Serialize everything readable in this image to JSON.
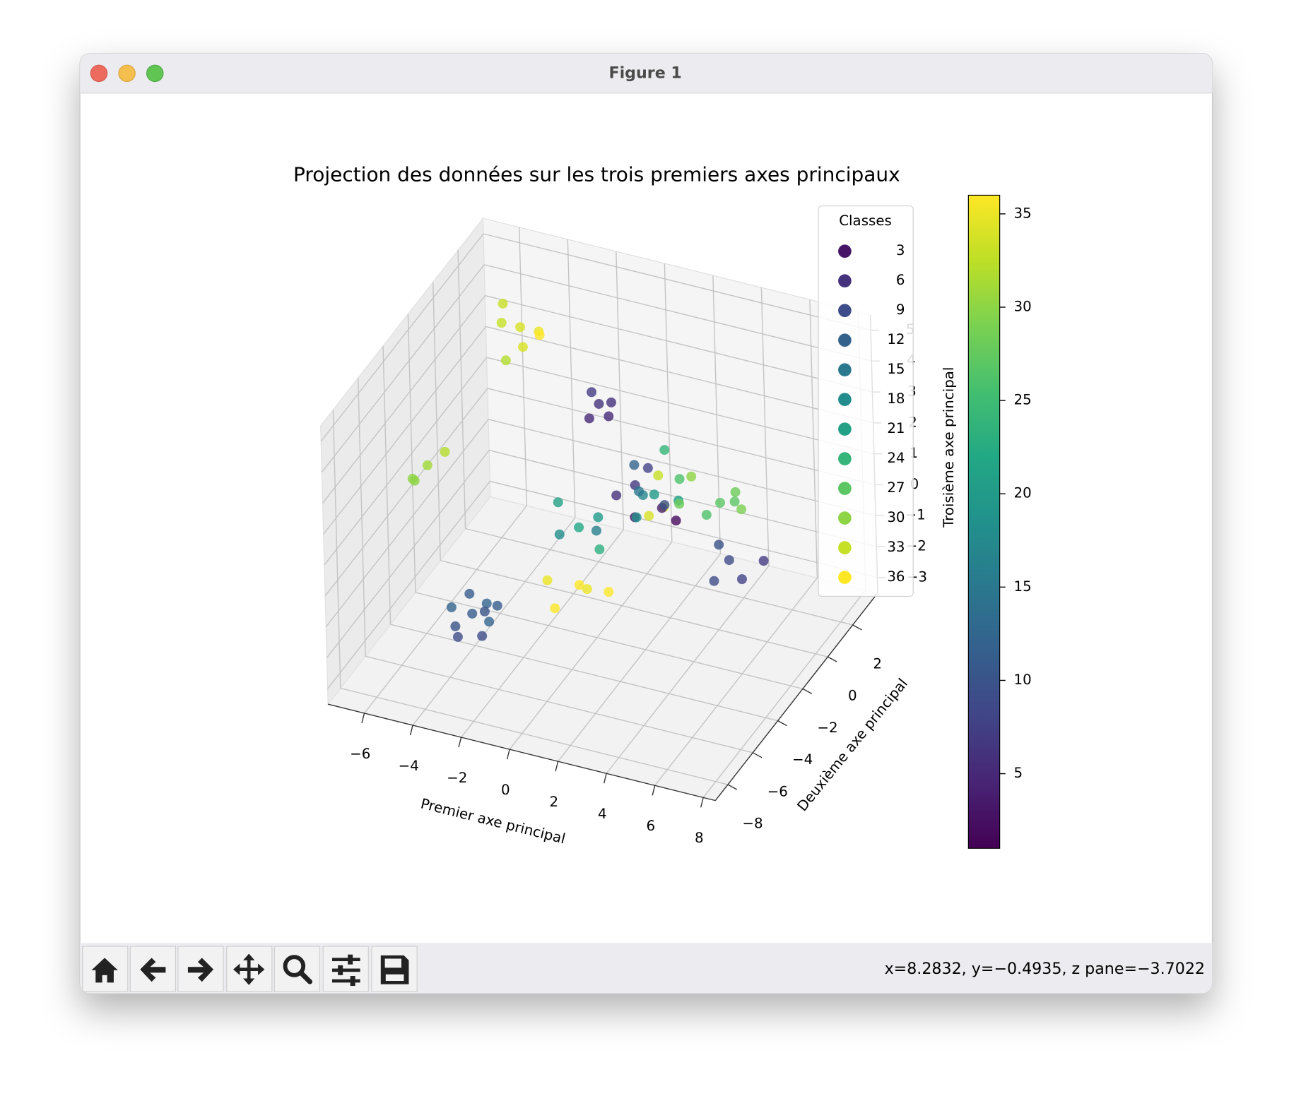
{
  "window": {
    "title": "Figure 1",
    "status": "x=8.2832, y=−0.4935, z pane=−3.7022"
  },
  "chart_data": {
    "type": "scatter3d",
    "title": "Projection des données sur les trois premiers axes principaux",
    "xlabel": "Premier axe principal",
    "ylabel": "Deuxième axe principal",
    "zlabel": "Troisième axe principal",
    "xlim": [
      -7.5,
      8.5
    ],
    "ylim": [
      -9,
      4
    ],
    "zlim": [
      -3.5,
      5.5
    ],
    "xticks": [
      {
        "value": -6,
        "label": "−6"
      },
      {
        "value": -4,
        "label": "−4"
      },
      {
        "value": -2,
        "label": "−2"
      },
      0,
      2,
      4,
      6,
      8
    ],
    "yticks": [
      {
        "value": -8,
        "label": "−8"
      },
      {
        "value": -6,
        "label": "−6"
      },
      {
        "value": -4,
        "label": "−4"
      },
      {
        "value": -2,
        "label": "−2"
      },
      0,
      2
    ],
    "zticks": [
      {
        "value": -3,
        "label": "−3"
      },
      {
        "value": -2,
        "label": "−2"
      },
      {
        "value": -1,
        "label": "−1"
      },
      0,
      1,
      2,
      3,
      4,
      5
    ],
    "grid": true,
    "colormap": [
      "#440154",
      "#482475",
      "#414487",
      "#355f8d",
      "#2a788e",
      "#21918c",
      "#22a884",
      "#44bf70",
      "#7ad151",
      "#bddf26",
      "#fde725"
    ],
    "clim": [
      1,
      36
    ],
    "colorbar_ticks": [
      5,
      10,
      15,
      20,
      25,
      30,
      35
    ],
    "legend": {
      "title": "Classes",
      "entries": [
        3,
        6,
        9,
        12,
        15,
        18,
        21,
        24,
        27,
        30,
        33,
        36
      ],
      "position": "upper right"
    },
    "x": [
      2,
      1.5,
      2.5,
      1.8,
      2.2,
      1.2,
      2.8,
      1.6,
      2.4,
      3.0,
      1.0,
      2.6,
      1.9,
      3.2,
      1.4,
      2.1,
      2.9,
      1.7,
      3.4,
      0.8,
      -2.8,
      -3.3,
      -2.4,
      -3.0,
      -2.2,
      -3.6,
      -2.6,
      -1.8,
      -3.1,
      -2.0,
      -5,
      -5.5,
      -4.5,
      -4.8,
      -5.8,
      -4.2,
      -5.2,
      -4.9,
      -5.4,
      -4.4,
      -5.1,
      -0.2,
      0.3,
      -0.6,
      0.1,
      -0.4,
      0.56,
      -0.5,
      1.5,
      0.0,
      1.2,
      -0.15,
      0.5,
      -0.8,
      0.9,
      -1.2,
      0.2,
      5.5,
      6.2,
      4.9,
      6.8,
      5.2,
      4.5,
      5.0,
      4.1,
      5.5,
      4.8
    ],
    "y": [
      -1,
      -0.5,
      -1.2,
      -1.5,
      -0.8,
      -1.0,
      -0.5,
      -1.8,
      -1.4,
      -1.0,
      -0.6,
      -0.2,
      -2.0,
      -1.6,
      -1.3,
      -0.3,
      -1.9,
      -0.9,
      -0.7,
      -1.7,
      -6.4,
      -6.8,
      -6.0,
      -6.2,
      -6.8,
      -6.5,
      -5.8,
      -6.3,
      -7.0,
      -6.6,
      2,
      1.5,
      2.5,
      1.8,
      2.2,
      2.0,
      1.2,
      -5.65,
      -5.9,
      -5.2,
      -6.3,
      -1,
      -1.2,
      -0.8,
      -0.6,
      -1.4,
      -4.3,
      -4.8,
      -3.8,
      -5.2,
      -4.9,
      -2.9,
      -2.6,
      -3.2,
      -3.3,
      -2.5,
      -2.2,
      -1.85,
      -2.2,
      -1.5,
      -1.6,
      -2.5,
      -0.57,
      -0.3,
      -0.9,
      -0.8,
      0.0
    ],
    "z": [
      1,
      1.5,
      0.8,
      1.2,
      0.5,
      1.8,
      1.4,
      0.6,
      1.9,
      1.0,
      0.9,
      0.4,
      1.6,
      0.7,
      0.3,
      2.1,
      1.3,
      0.2,
      1.7,
      1.1,
      -1,
      -1.3,
      -0.8,
      -0.5,
      -1.4,
      -0.9,
      -1.2,
      -0.6,
      -1.5,
      -1.0,
      3.5,
      3.8,
      3.2,
      3.0,
      4.0,
      3.4,
      2.8,
      3,
      2.6,
      3.3,
      2.8,
      3.5,
      3.3,
      3.7,
      3.4,
      3.2,
      -0.5,
      -0.3,
      -0.8,
      -0.9,
      -0.2,
      0.5,
      0.8,
      0.3,
      0.2,
      0.9,
      0.1,
      0,
      -0.3,
      0.2,
      0.1,
      -0.4,
      1,
      1.3,
      0.7,
      1.1,
      0.8
    ],
    "c": [
      20,
      8,
      35,
      17,
      4,
      12,
      26,
      3,
      33,
      21,
      7,
      28,
      15,
      2,
      19,
      24,
      10,
      34,
      30,
      6,
      11,
      10,
      12,
      11,
      9,
      12,
      10,
      11,
      9,
      12,
      34,
      33,
      35,
      34,
      33,
      36,
      32,
      31,
      30,
      32,
      30,
      6,
      5,
      7,
      6,
      5,
      36,
      35,
      36,
      36,
      35,
      22,
      20,
      18,
      23,
      21,
      16,
      9,
      8,
      10,
      7,
      9,
      27,
      28,
      26,
      29,
      27
    ]
  }
}
